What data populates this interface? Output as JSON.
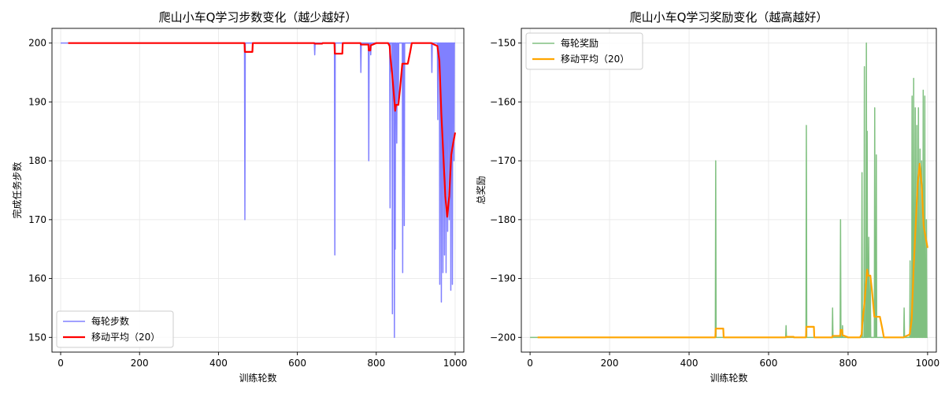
{
  "chart_data": [
    {
      "type": "line",
      "title": "爬山小车Q学习步数变化（越少越好）",
      "xlabel": "训练轮数",
      "ylabel": "完成任务步数",
      "xlim": [
        -22,
        1022
      ],
      "ylim": [
        147.5,
        202.5
      ],
      "xticks": [
        0,
        200,
        400,
        600,
        800,
        1000
      ],
      "yticks": [
        150,
        160,
        170,
        180,
        190,
        200
      ],
      "grid": true,
      "legend_position": "lower-left",
      "series": [
        {
          "name": "每轮步数",
          "color": "#8080ff",
          "x": [
            0,
            466,
            467,
            468,
            643,
            644,
            645,
            694,
            695,
            696,
            760,
            761,
            762,
            780,
            781,
            782,
            785,
            786,
            787,
            834,
            835,
            836,
            840,
            841,
            842,
            845,
            846,
            847,
            848,
            849,
            850,
            852,
            853,
            854,
            856,
            857,
            858,
            860,
            861,
            862,
            866,
            867,
            868,
            870,
            871,
            872,
            940,
            941,
            942,
            955,
            956,
            957,
            960,
            961,
            962,
            964,
            965,
            966,
            968,
            969,
            970,
            972,
            973,
            974,
            976,
            977,
            978,
            980,
            981,
            982,
            984,
            985,
            986,
            988,
            989,
            990,
            992,
            993,
            994,
            996,
            997,
            998,
            1000
          ],
          "y": [
            200,
            200,
            170,
            200,
            200,
            198,
            200,
            200,
            164,
            200,
            200,
            195,
            200,
            200,
            180,
            200,
            200,
            198,
            200,
            200,
            172,
            200,
            200,
            154,
            200,
            200,
            150,
            200,
            165,
            200,
            200,
            183,
            200,
            200,
            190,
            200,
            200,
            200,
            200,
            200,
            200,
            161,
            200,
            200,
            169,
            200,
            200,
            195,
            200,
            200,
            187,
            200,
            200,
            159,
            200,
            200,
            156,
            200,
            200,
            161,
            200,
            200,
            164,
            200,
            200,
            161,
            200,
            200,
            168,
            200,
            200,
            170,
            200,
            200,
            158,
            200,
            200,
            159,
            200,
            200,
            180,
            200,
            200
          ]
        },
        {
          "name": "移动平均（20）",
          "color": "#ff0000",
          "x": [
            19,
            466,
            467,
            486,
            487,
            643,
            644,
            663,
            664,
            694,
            695,
            714,
            715,
            760,
            761,
            780,
            781,
            785,
            786,
            800,
            805,
            830,
            834,
            836,
            840,
            845,
            848,
            850,
            856,
            860,
            866,
            870,
            880,
            886,
            890,
            940,
            945,
            955,
            960,
            965,
            970,
            975,
            980,
            985,
            990,
            995,
            1000
          ],
          "y": [
            200,
            200,
            198.5,
            198.5,
            200,
            200,
            199.9,
            199.9,
            200,
            200,
            198.2,
            198.2,
            200,
            200,
            199.75,
            199.75,
            198.75,
            198.75,
            199.6,
            200,
            200,
            200,
            199.5,
            197.5,
            195,
            191,
            188.5,
            189.5,
            189.5,
            192,
            196.5,
            196.5,
            196.5,
            198.5,
            200,
            200,
            199.8,
            199.5,
            197,
            188,
            181,
            174,
            170.5,
            174,
            181,
            183,
            184.8
          ]
        }
      ]
    },
    {
      "type": "line",
      "title": "爬山小车Q学习奖励变化（越高越好）",
      "xlabel": "训练轮数",
      "ylabel": "总奖励",
      "xlim": [
        -22,
        1022
      ],
      "ylim": [
        -202.5,
        -147.5
      ],
      "xticks": [
        0,
        200,
        400,
        600,
        800,
        1000
      ],
      "yticks": [
        -150,
        -160,
        -170,
        -180,
        -190,
        -200
      ],
      "grid": true,
      "legend_position": "upper-left",
      "series": [
        {
          "name": "每轮奖励",
          "color": "#80c080",
          "x": [
            0,
            466,
            467,
            468,
            643,
            644,
            645,
            694,
            695,
            696,
            760,
            761,
            762,
            780,
            781,
            782,
            785,
            786,
            787,
            834,
            835,
            836,
            840,
            841,
            842,
            845,
            846,
            847,
            848,
            849,
            850,
            852,
            853,
            854,
            856,
            857,
            858,
            866,
            867,
            868,
            870,
            871,
            872,
            940,
            941,
            942,
            955,
            956,
            957,
            960,
            961,
            962,
            964,
            965,
            966,
            968,
            969,
            970,
            972,
            973,
            974,
            976,
            977,
            978,
            980,
            981,
            982,
            984,
            985,
            986,
            988,
            989,
            990,
            992,
            993,
            994,
            996,
            997,
            998,
            1000
          ],
          "y": [
            -200,
            -200,
            -170,
            -200,
            -200,
            -198,
            -200,
            -200,
            -164,
            -200,
            -200,
            -195,
            -200,
            -200,
            -180,
            -200,
            -200,
            -198,
            -200,
            -200,
            -172,
            -200,
            -200,
            -154,
            -200,
            -200,
            -150,
            -200,
            -165,
            -200,
            -200,
            -183,
            -200,
            -200,
            -190,
            -200,
            -200,
            -200,
            -161,
            -200,
            -200,
            -169,
            -200,
            -200,
            -195,
            -200,
            -200,
            -187,
            -200,
            -200,
            -159,
            -200,
            -200,
            -156,
            -200,
            -200,
            -161,
            -200,
            -200,
            -164,
            -200,
            -200,
            -161,
            -200,
            -200,
            -168,
            -200,
            -200,
            -170,
            -200,
            -200,
            -158,
            -200,
            -200,
            -159,
            -200,
            -200,
            -180,
            -200,
            -200
          ]
        },
        {
          "name": "移动平均（20）",
          "color": "#ffa500",
          "x": [
            19,
            466,
            467,
            486,
            487,
            643,
            644,
            663,
            664,
            694,
            695,
            714,
            715,
            760,
            761,
            780,
            781,
            785,
            786,
            800,
            805,
            830,
            834,
            836,
            840,
            845,
            848,
            850,
            856,
            860,
            866,
            870,
            880,
            886,
            890,
            940,
            945,
            955,
            960,
            965,
            970,
            975,
            980,
            985,
            990,
            995,
            1000
          ],
          "y": [
            -200,
            -200,
            -198.5,
            -198.5,
            -200,
            -200,
            -199.9,
            -199.9,
            -200,
            -200,
            -198.2,
            -198.2,
            -200,
            -200,
            -199.75,
            -199.75,
            -198.75,
            -198.75,
            -199.6,
            -200,
            -200,
            -200,
            -199.5,
            -197.5,
            -195,
            -191,
            -188.5,
            -189.5,
            -189.5,
            -192,
            -196.5,
            -196.5,
            -196.5,
            -198.5,
            -200,
            -200,
            -199.8,
            -199.5,
            -197,
            -188,
            -181,
            -174,
            -170.5,
            -174,
            -181,
            -183,
            -184.8
          ]
        }
      ]
    }
  ]
}
